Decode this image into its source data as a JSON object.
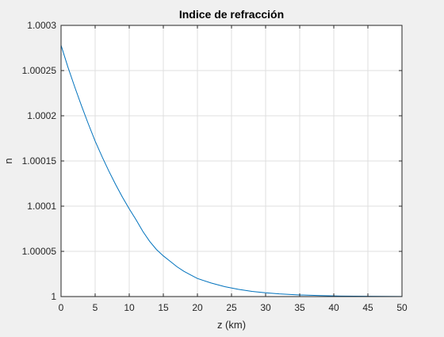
{
  "chart_data": {
    "type": "line",
    "title": "Indice de refracción",
    "xlabel": "z (km)",
    "ylabel": "n",
    "xlim": [
      0,
      50
    ],
    "ylim": [
      1,
      1.0003
    ],
    "grid": true,
    "x_ticks": [
      0,
      5,
      10,
      15,
      20,
      25,
      30,
      35,
      40,
      45,
      50
    ],
    "x_tick_labels": [
      "0",
      "5",
      "10",
      "15",
      "20",
      "25",
      "30",
      "35",
      "40",
      "45",
      "50"
    ],
    "y_ticks": [
      1,
      1.00005,
      1.0001,
      1.00015,
      1.0002,
      1.00025,
      1.0003
    ],
    "y_tick_labels": [
      "1",
      "1.00005",
      "1.0001",
      "1.00015",
      "1.0002",
      "1.00025",
      "1.0003"
    ],
    "series": [
      {
        "color": "#0072bd",
        "x": [
          0,
          1,
          2,
          3,
          4,
          5,
          6,
          7,
          8,
          9,
          10,
          11,
          12,
          13,
          14,
          15,
          16,
          17,
          18,
          19,
          20,
          22,
          24,
          26,
          28,
          30,
          32,
          35,
          38,
          41,
          45,
          50
        ],
        "y": [
          1.000278,
          1.000254,
          1.000232,
          1.000211,
          1.000191,
          1.000172,
          1.000155,
          1.000139,
          1.000124,
          1.00011,
          1.000097,
          1.000085,
          1.000072,
          1.000061,
          1.000052,
          1.000045,
          1.000039,
          1.000033,
          1.000028,
          1.000024,
          1.00002,
          1.000015,
          1.000011,
          1.000008,
          1.0000057,
          1.0000042,
          1.000003,
          1.0000018,
          1.0000011,
          1.0000006,
          1.0000003,
          1.0000001
        ]
      }
    ]
  }
}
